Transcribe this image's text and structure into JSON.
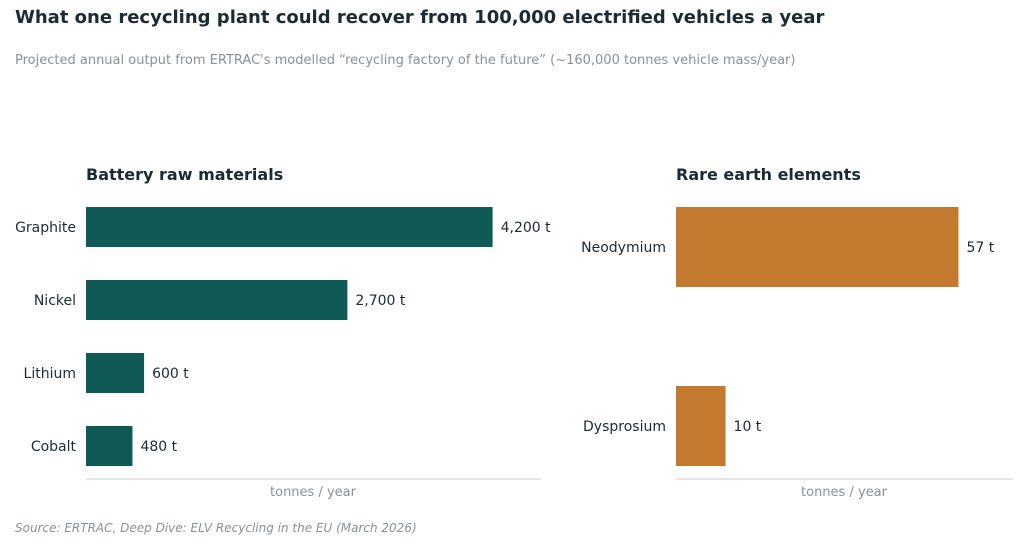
{
  "title": "What one recycling plant could recover from 100,000 electrified vehicles a year",
  "subtitle": "Projected annual output from ERTRAC's modelled “recycling factory of the future” (~160,000 tonnes vehicle mass/year)",
  "source": "Source: ERTRAC, Deep Dive: ELV Recycling in the EU (March 2026)",
  "chart_data": [
    {
      "type": "bar",
      "orientation": "horizontal",
      "title": "Battery raw materials",
      "categories": [
        "Graphite",
        "Nickel",
        "Lithium",
        "Cobalt"
      ],
      "values": [
        4200,
        2700,
        600,
        480
      ],
      "value_labels": [
        "4,200 t",
        "2,700 t",
        "600 t",
        "480 t"
      ],
      "xlabel": "tonnes / year",
      "xlim": [
        0,
        4700
      ],
      "color": "#0f5a55",
      "grid": false
    },
    {
      "type": "bar",
      "orientation": "horizontal",
      "title": "Rare earth elements",
      "categories": [
        "Neodymium",
        "Dysprosium"
      ],
      "values": [
        57,
        10
      ],
      "value_labels": [
        "57 t",
        "10 t"
      ],
      "xlabel": "tonnes / year",
      "xlim": [
        0,
        68
      ],
      "color": "#c47a2e",
      "grid": false
    }
  ]
}
